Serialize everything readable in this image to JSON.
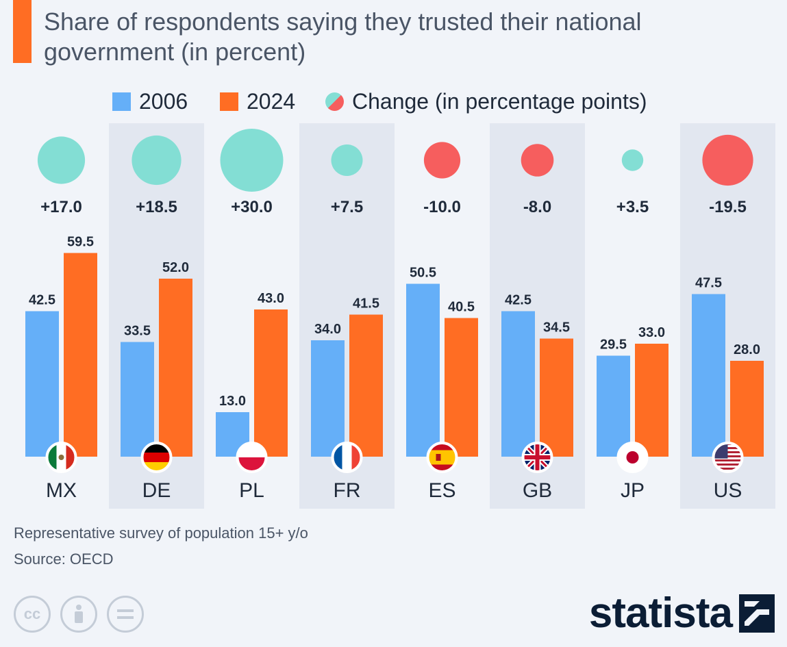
{
  "title": "Share of respondents saying they trusted their national government (in percent)",
  "colors": {
    "accent": "#ff6d23",
    "y2006": "#65aff8",
    "y2024": "#ff6d23",
    "change_pos": "#83ded4",
    "change_neg": "#f65e5e",
    "band": "#e2e7f0"
  },
  "legend": {
    "series_2006": "2006",
    "series_2024": "2024",
    "change": "Change (in percentage points)"
  },
  "chart_data": {
    "type": "bar",
    "title": "Share of respondents saying they trusted their national government (in percent)",
    "categories": [
      "MX",
      "DE",
      "PL",
      "FR",
      "ES",
      "GB",
      "JP",
      "US"
    ],
    "series": [
      {
        "name": "2006",
        "values": [
          42.5,
          33.5,
          13.0,
          34.0,
          50.5,
          42.5,
          29.5,
          47.5
        ]
      },
      {
        "name": "2024",
        "values": [
          59.5,
          52.0,
          43.0,
          41.5,
          40.5,
          34.5,
          33.0,
          28.0
        ]
      }
    ],
    "change": {
      "name": "Change (in percentage points)",
      "values": [
        17.0,
        18.5,
        30.0,
        7.5,
        -10.0,
        -8.0,
        3.5,
        -19.5
      ],
      "labels": [
        "+17.0",
        "+18.5",
        "+30.0",
        "+7.5",
        "-10.0",
        "-8.0",
        "+3.5",
        "-19.5"
      ]
    },
    "value_labels": {
      "2006": [
        "42.5",
        "33.5",
        "13.0",
        "34.0",
        "50.5",
        "42.5",
        "29.5",
        "47.5"
      ],
      "2024": [
        "59.5",
        "52.0",
        "43.0",
        "41.5",
        "40.5",
        "34.5",
        "33.0",
        "28.0"
      ]
    },
    "flags": [
      "mexico-flag",
      "germany-flag",
      "poland-flag",
      "france-flag",
      "spain-flag",
      "uk-flag",
      "japan-flag",
      "usa-flag"
    ],
    "xlabel": "",
    "ylabel": "",
    "ylim": [
      0,
      60
    ],
    "grid": false
  },
  "notes": {
    "survey": "Representative survey of population 15+ y/o",
    "source": "Source: OECD"
  },
  "footer": {
    "brand": "statista",
    "cc_icons": [
      "cc-icon",
      "attribution-icon",
      "no-derivatives-icon"
    ],
    "cc_label": "cc"
  }
}
